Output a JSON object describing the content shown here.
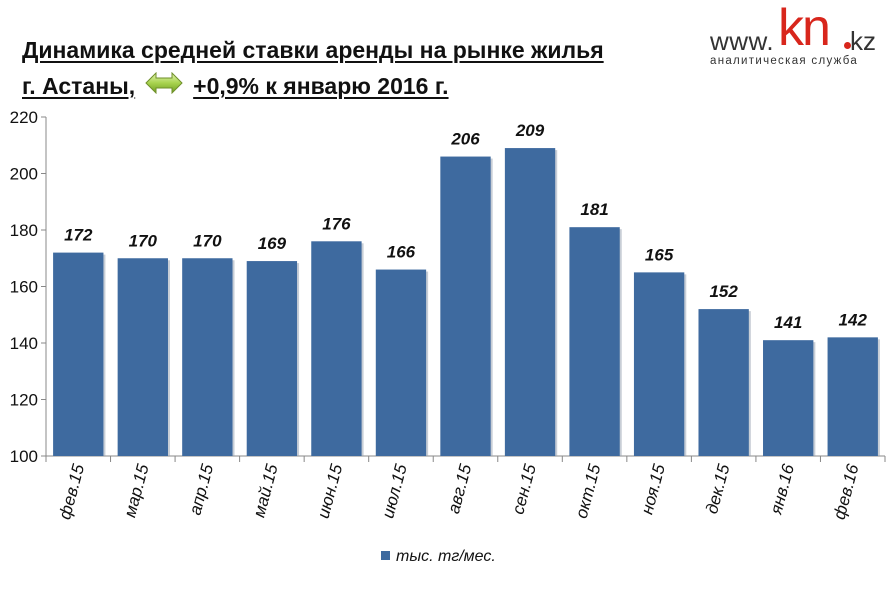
{
  "header": {
    "title_line1": "Динамика средней ставки аренды на рынке жилья",
    "title_line2_prefix": "г. Астаны,",
    "title_line2_suffix": "+0,9% к январю 2016 г.",
    "arrow_icon": "double-arrow-icon"
  },
  "logo": {
    "www": "www.",
    "kn": "kn",
    "kz": "kz",
    "subtitle": "аналитическая служба"
  },
  "chart_data": {
    "type": "bar",
    "categories": [
      "фев.15",
      "мар.15",
      "апр.15",
      "май.15",
      "июн.15",
      "июл.15",
      "авг.15",
      "сен.15",
      "окт.15",
      "ноя.15",
      "дек.15",
      "янв.16",
      "фев.16"
    ],
    "series": [
      {
        "name": "тыс. тг/мес.",
        "values": [
          172,
          170,
          170,
          169,
          176,
          166,
          206,
          209,
          181,
          165,
          152,
          141,
          142
        ]
      }
    ],
    "data_labels": [
      "172",
      "170",
      "170",
      "169",
      "176",
      "166",
      "206",
      "209",
      "181",
      "165",
      "152",
      "141",
      "142"
    ],
    "ylim": [
      100,
      220
    ],
    "yticks": [
      100,
      120,
      140,
      160,
      180,
      200,
      220
    ],
    "grid": false,
    "legend": "bottom",
    "bar_color": "#3e6a9f"
  }
}
